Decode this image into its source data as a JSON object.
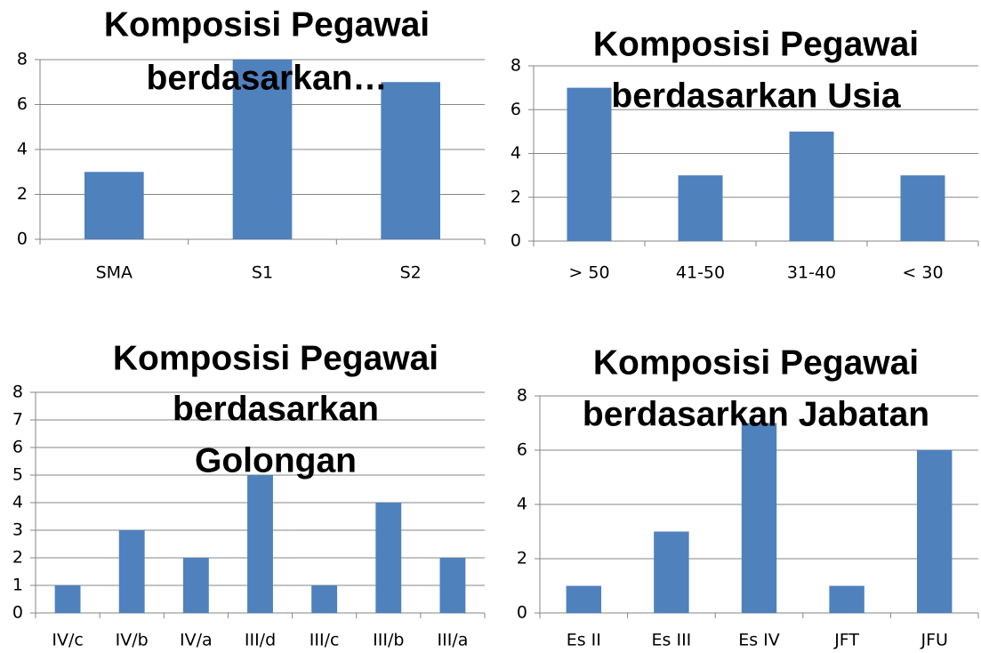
{
  "chart_data": [
    {
      "type": "bar",
      "title": [
        "Komposisi Pegawai",
        "berdasarkan…"
      ],
      "categories": [
        "SMA",
        "S1",
        "S2"
      ],
      "values": [
        3,
        8,
        7
      ],
      "color": "#4f81bd",
      "ylim": [
        0,
        8
      ],
      "yticks": [
        0,
        2,
        4,
        6,
        8
      ],
      "grid": true
    },
    {
      "type": "bar",
      "title": [
        "Komposisi Pegawai",
        "berdasarkan Usia"
      ],
      "categories": [
        "> 50",
        "41-50",
        "31-40",
        "< 30"
      ],
      "values": [
        7,
        3,
        5,
        3
      ],
      "color": "#4f81bd",
      "ylim": [
        0,
        8
      ],
      "yticks": [
        0,
        2,
        4,
        6,
        8
      ],
      "grid": true
    },
    {
      "type": "bar",
      "title": [
        "Komposisi Pegawai",
        "berdasarkan",
        "Golongan"
      ],
      "categories": [
        "IV/c",
        "IV/b",
        "IV/a",
        "III/d",
        "III/c",
        "III/b",
        "III/a"
      ],
      "values": [
        1,
        3,
        2,
        5,
        1,
        4,
        2
      ],
      "color": "#4f81bd",
      "ylim": [
        0,
        8
      ],
      "yticks": [
        0,
        1,
        2,
        3,
        4,
        5,
        6,
        7,
        8
      ],
      "grid": true
    },
    {
      "type": "bar",
      "title": [
        "Komposisi Pegawai",
        "berdasarkan Jabatan"
      ],
      "categories": [
        "Es II",
        "Es III",
        "Es IV",
        "JFT",
        "JFU"
      ],
      "values": [
        1,
        3,
        7,
        1,
        6
      ],
      "color": "#4f81bd",
      "ylim": [
        0,
        8
      ],
      "yticks": [
        0,
        2,
        4,
        6,
        8
      ],
      "grid": true
    }
  ]
}
